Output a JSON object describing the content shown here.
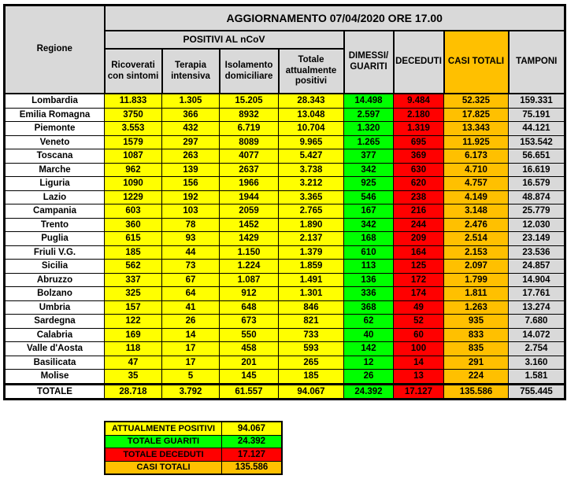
{
  "colors": {
    "yellow": "#FFFF00",
    "green": "#00FF00",
    "red": "#FF0000",
    "orange": "#FFC000",
    "gray": "#D9D9D9",
    "header_gray": "#D9D9D9",
    "white": "#FFFFFF",
    "border": "#000000"
  },
  "chart_data": {
    "type": "table",
    "title": "AGGIORNAMENTO 07/04/2020 ORE 17.00",
    "column_group": "POSITIVI AL nCoV",
    "regione_header": "Regione",
    "sub_columns": [
      "Ricoverati con sintomi",
      "Terapia intensiva",
      "Isolamento domiciliare",
      "Totale attualmente positivi"
    ],
    "right_columns": [
      "DIMESSI/ GUARITI",
      "DECEDUTI",
      "CASI TOTALI",
      "TAMPONI"
    ],
    "column_color_keys": [
      "yellow",
      "yellow",
      "yellow",
      "yellow",
      "green",
      "red",
      "orange",
      "gray"
    ],
    "rows": [
      {
        "region": "Lombardia",
        "values": [
          "11.833",
          "1.305",
          "15.205",
          "28.343",
          "14.498",
          "9.484",
          "52.325",
          "159.331"
        ]
      },
      {
        "region": "Emilia Romagna",
        "values": [
          "3750",
          "366",
          "8932",
          "13.048",
          "2.597",
          "2.180",
          "17.825",
          "75.191"
        ]
      },
      {
        "region": "Piemonte",
        "values": [
          "3.553",
          "432",
          "6.719",
          "10.704",
          "1.320",
          "1.319",
          "13.343",
          "44.121"
        ]
      },
      {
        "region": "Veneto",
        "values": [
          "1579",
          "297",
          "8089",
          "9.965",
          "1.265",
          "695",
          "11.925",
          "153.542"
        ]
      },
      {
        "region": "Toscana",
        "values": [
          "1087",
          "263",
          "4077",
          "5.427",
          "377",
          "369",
          "6.173",
          "56.651"
        ]
      },
      {
        "region": "Marche",
        "values": [
          "962",
          "139",
          "2637",
          "3.738",
          "342",
          "630",
          "4.710",
          "16.619"
        ]
      },
      {
        "region": "Liguria",
        "values": [
          "1090",
          "156",
          "1966",
          "3.212",
          "925",
          "620",
          "4.757",
          "16.579"
        ]
      },
      {
        "region": "Lazio",
        "values": [
          "1229",
          "192",
          "1944",
          "3.365",
          "546",
          "238",
          "4.149",
          "48.874"
        ]
      },
      {
        "region": "Campania",
        "values": [
          "603",
          "103",
          "2059",
          "2.765",
          "167",
          "216",
          "3.148",
          "25.779"
        ]
      },
      {
        "region": "Trento",
        "values": [
          "360",
          "78",
          "1452",
          "1.890",
          "342",
          "244",
          "2.476",
          "12.030"
        ]
      },
      {
        "region": "Puglia",
        "values": [
          "615",
          "93",
          "1429",
          "2.137",
          "168",
          "209",
          "2.514",
          "23.149"
        ]
      },
      {
        "region": "Friuli V.G.",
        "values": [
          "185",
          "44",
          "1.150",
          "1.379",
          "610",
          "164",
          "2.153",
          "23.536"
        ]
      },
      {
        "region": "Sicilia",
        "values": [
          "562",
          "73",
          "1.224",
          "1.859",
          "113",
          "125",
          "2.097",
          "24.857"
        ]
      },
      {
        "region": "Abruzzo",
        "values": [
          "337",
          "67",
          "1.087",
          "1.491",
          "136",
          "172",
          "1.799",
          "14.904"
        ]
      },
      {
        "region": "Bolzano",
        "values": [
          "325",
          "64",
          "912",
          "1.301",
          "336",
          "174",
          "1.811",
          "17.761"
        ]
      },
      {
        "region": "Umbria",
        "values": [
          "157",
          "41",
          "648",
          "846",
          "368",
          "49",
          "1.263",
          "13.274"
        ]
      },
      {
        "region": "Sardegna",
        "values": [
          "122",
          "26",
          "673",
          "821",
          "62",
          "52",
          "935",
          "7.680"
        ]
      },
      {
        "region": "Calabria",
        "values": [
          "169",
          "14",
          "550",
          "733",
          "40",
          "60",
          "833",
          "14.072"
        ]
      },
      {
        "region": "Valle d'Aosta",
        "values": [
          "118",
          "17",
          "458",
          "593",
          "142",
          "100",
          "835",
          "2.754"
        ]
      },
      {
        "region": "Basilicata",
        "values": [
          "47",
          "17",
          "201",
          "265",
          "12",
          "14",
          "291",
          "3.160"
        ]
      },
      {
        "region": "Molise",
        "values": [
          "35",
          "5",
          "145",
          "185",
          "26",
          "13",
          "224",
          "1.581"
        ]
      }
    ],
    "total_row": {
      "label": "TOTALE",
      "values": [
        "28.718",
        "3.792",
        "61.557",
        "94.067",
        "24.392",
        "17.127",
        "135.586",
        "755.445"
      ]
    },
    "summary": [
      {
        "label": "ATTUALMENTE POSITIVI",
        "value": "94.067",
        "color": "yellow"
      },
      {
        "label": "TOTALE GUARITI",
        "value": "24.392",
        "color": "green"
      },
      {
        "label": "TOTALE DECEDUTI",
        "value": "17.127",
        "color": "red"
      },
      {
        "label": "CASI TOTALI",
        "value": "135.586",
        "color": "orange"
      }
    ]
  }
}
